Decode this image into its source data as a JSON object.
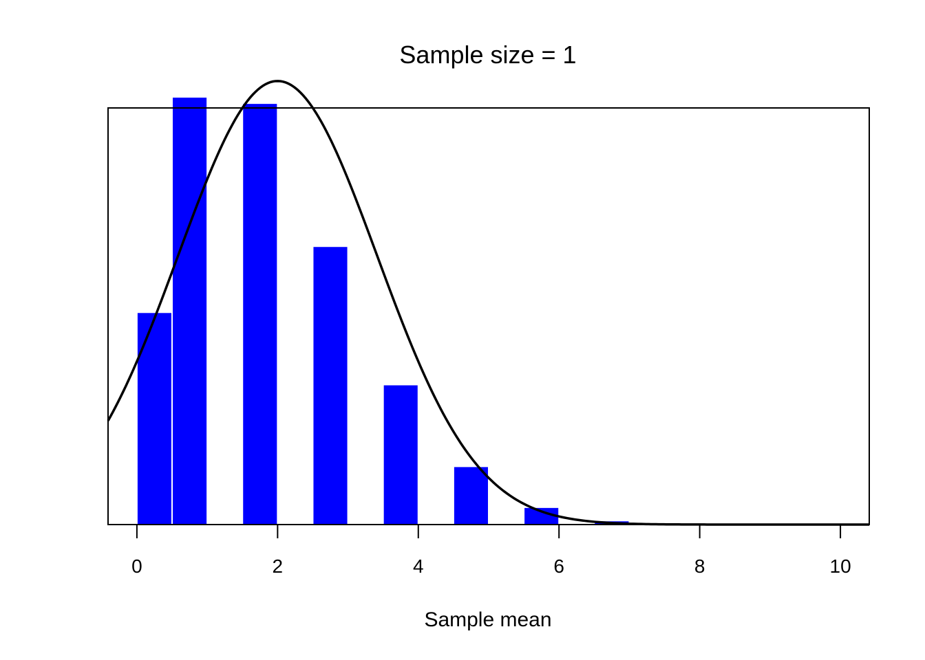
{
  "chart_data": {
    "type": "bar",
    "title": "Sample size = 1",
    "xlabel": "Sample mean",
    "ylabel": "",
    "xlim": [
      -0.41,
      10.41
    ],
    "ylim": [
      0,
      0.265
    ],
    "x_ticks": [
      0,
      2,
      4,
      6,
      8,
      10
    ],
    "x_tick_labels": [
      "0",
      "2",
      "4",
      "6",
      "8",
      "10"
    ],
    "grid": false,
    "legend": "none",
    "bins": [
      {
        "x0": 0.0,
        "x1": 0.5,
        "density": 0.135
      },
      {
        "x0": 0.5,
        "x1": 1.0,
        "density": 0.272
      },
      {
        "x0": 1.5,
        "x1": 2.0,
        "density": 0.268
      },
      {
        "x0": 2.5,
        "x1": 3.0,
        "density": 0.177
      },
      {
        "x0": 3.5,
        "x1": 4.0,
        "density": 0.089
      },
      {
        "x0": 4.5,
        "x1": 5.0,
        "density": 0.037
      },
      {
        "x0": 5.5,
        "x1": 6.0,
        "density": 0.011
      },
      {
        "x0": 6.5,
        "x1": 7.0,
        "density": 0.0025
      }
    ],
    "normal_curve": {
      "mean": 2.0,
      "sd": 1.414
    },
    "colors": {
      "bars": "#0000ff",
      "bar_border": "#ffffff",
      "curve": "#000000",
      "frame": "#000000"
    }
  }
}
